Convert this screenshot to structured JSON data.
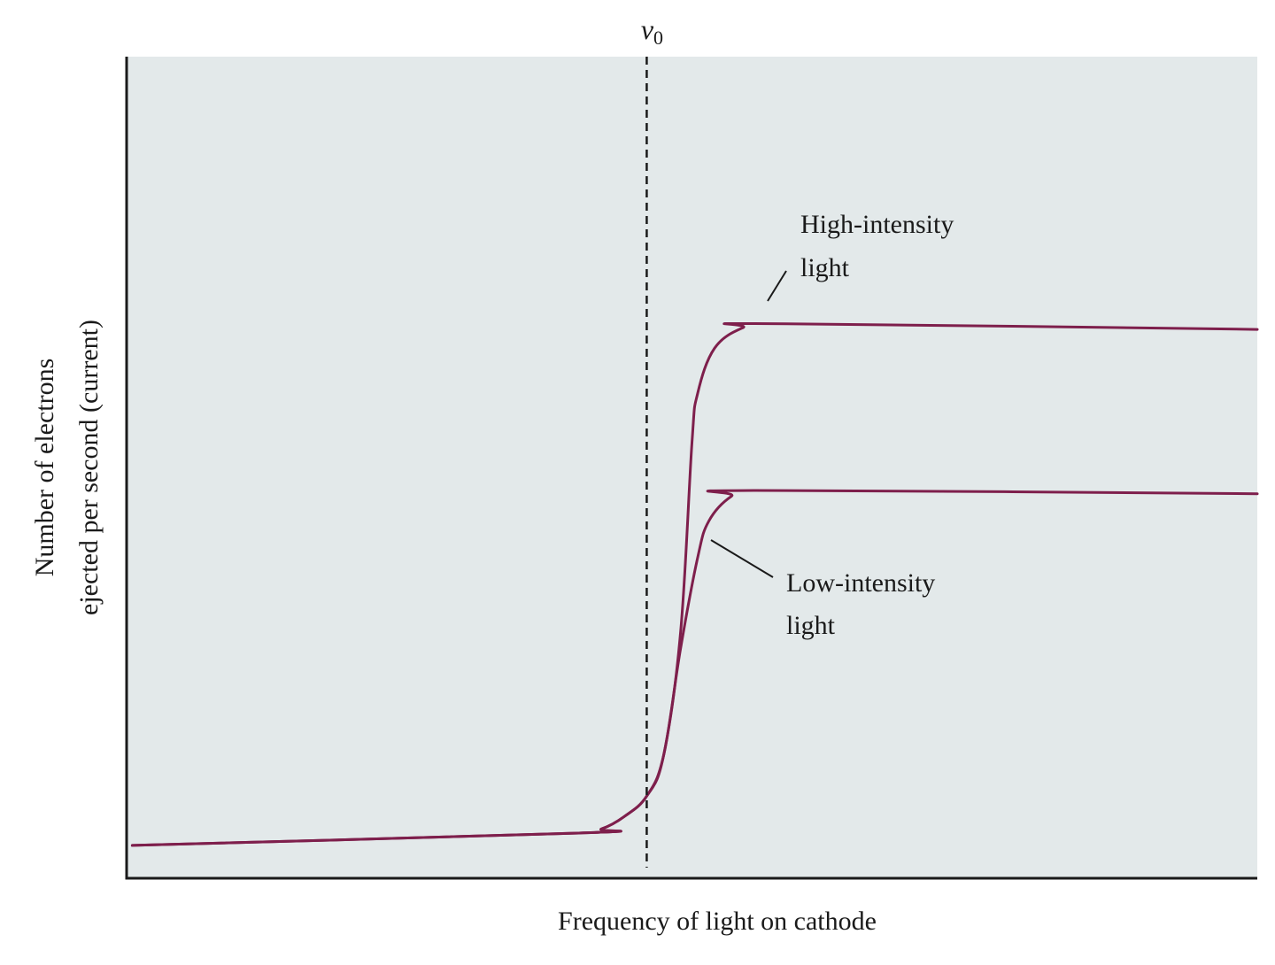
{
  "chart_data": {
    "type": "line",
    "title": "",
    "xlabel": "Frequency of light on cathode",
    "ylabel_line1": "Number of electrons",
    "ylabel_line2": "ejected per second (current)",
    "xlim": [
      0,
      10
    ],
    "ylim": [
      0,
      10
    ],
    "grid": false,
    "threshold": {
      "symbol": "ν",
      "subscript": "0",
      "x": 4.6
    },
    "series": [
      {
        "name": "High-intensity light",
        "label_line1": "High-intensity",
        "label_line2": "light",
        "color": "#7e1f4c",
        "points": [
          [
            0.05,
            0.4
          ],
          [
            4.0,
            0.55
          ],
          [
            4.2,
            0.6
          ],
          [
            4.4,
            0.75
          ],
          [
            4.6,
            1.0
          ],
          [
            4.75,
            1.5
          ],
          [
            4.9,
            3.0
          ],
          [
            5.0,
            5.3
          ],
          [
            5.05,
            5.9
          ],
          [
            5.2,
            6.45
          ],
          [
            5.45,
            6.7
          ],
          [
            5.7,
            6.75
          ],
          [
            10.0,
            6.68
          ]
        ]
      },
      {
        "name": "Low-intensity light",
        "label_line1": "Low-intensity",
        "label_line2": "light",
        "color": "#7e1f4c",
        "points": [
          [
            0.05,
            0.4
          ],
          [
            4.0,
            0.55
          ],
          [
            4.2,
            0.6
          ],
          [
            4.4,
            0.75
          ],
          [
            4.6,
            1.0
          ],
          [
            4.75,
            1.5
          ],
          [
            4.9,
            2.8
          ],
          [
            5.05,
            3.9
          ],
          [
            5.15,
            4.35
          ],
          [
            5.35,
            4.65
          ],
          [
            5.55,
            4.72
          ],
          [
            10.0,
            4.68
          ]
        ]
      }
    ]
  }
}
